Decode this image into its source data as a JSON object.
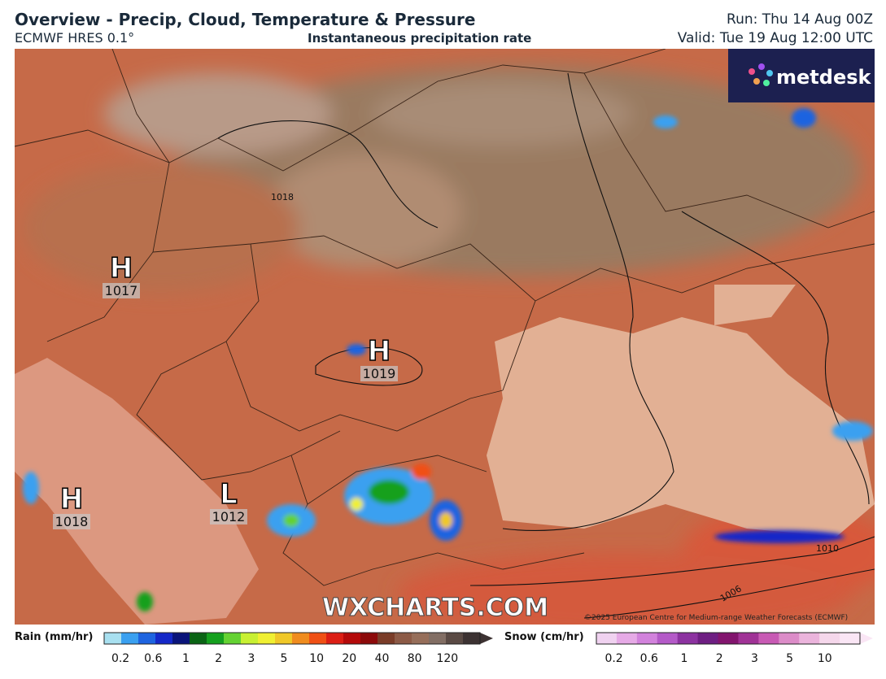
{
  "header": {
    "title": "Overview - Precip, Cloud, Temperature & Pressure",
    "model": "ECMWF HRES 0.1°",
    "subtitle": "Instantaneous precipitation rate",
    "run": "Run: Thu 14 Aug 00Z",
    "valid": "Valid: Tue 19 Aug 12:00 UTC"
  },
  "logo": "metdesk",
  "pressure_centres": [
    {
      "letter": "H",
      "value": "1017"
    },
    {
      "letter": "H",
      "value": "1019"
    },
    {
      "letter": "H",
      "value": "1018"
    },
    {
      "letter": "L",
      "value": "1012"
    }
  ],
  "isobar_labels": [
    "1018",
    "1010",
    "1006"
  ],
  "watermark": "WXCHARTS.COM",
  "copyright": "©2025 European Centre for Medium-range Weather Forecasts (ECMWF)",
  "rain_legend": {
    "title": "Rain (mm/hr)",
    "labels": [
      "0.2",
      "0.6",
      "1",
      "2",
      "3",
      "5",
      "10",
      "20",
      "40",
      "80",
      "120"
    ],
    "colors": [
      "#a8e0f0",
      "#3aa0f0",
      "#1e64e0",
      "#1428c8",
      "#0a147a",
      "#0a6414",
      "#14a01e",
      "#64d232",
      "#c8f032",
      "#f0f032",
      "#f0c828",
      "#f08c1e",
      "#f05014",
      "#dc1e14",
      "#b40a0a",
      "#8c0a0a",
      "#7a3c28",
      "#8c5a46",
      "#966e5a",
      "#826e64",
      "#5a4a44",
      "#3c3232"
    ]
  },
  "snow_legend": {
    "title": "Snow (cm/hr)",
    "labels": [
      "0.2",
      "0.6",
      "1",
      "2",
      "3",
      "5",
      "10"
    ],
    "colors": [
      "#f0d2f0",
      "#e6aae6",
      "#d282dc",
      "#b45ac8",
      "#8c32a0",
      "#6e1e82",
      "#82146e",
      "#a03296",
      "#c85ab4",
      "#dc8cc8",
      "#ebb4dc",
      "#f5d7eb",
      "#fae6f5"
    ]
  }
}
